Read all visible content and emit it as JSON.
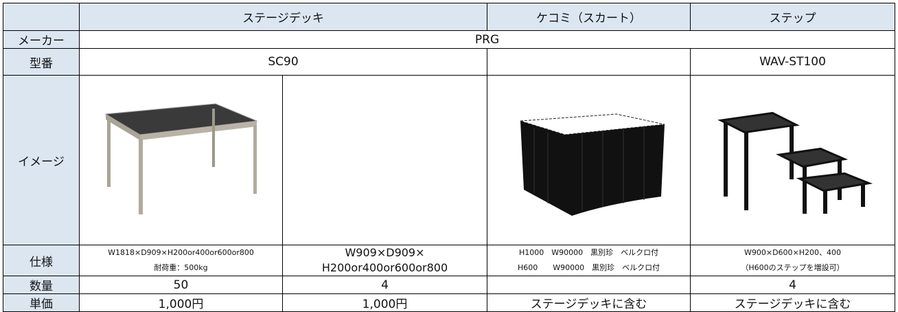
{
  "table": {
    "columns": [
      "ステージデッキ",
      "ケコミ（スカート）",
      "ステップ"
    ],
    "rows": {
      "maker": {
        "label": "メーカー",
        "value": "PRG"
      },
      "model": {
        "label": "型番",
        "deck": "SC90",
        "step": "WAV-ST100"
      },
      "image": {
        "label": "イメージ"
      },
      "spec": {
        "label": "仕様",
        "deck_a": [
          "W1818×D909×H200or400or600or800",
          "耐荷重：500kg"
        ],
        "deck_b": [
          "W909×D909×",
          "H200or400or600or800"
        ],
        "skirt": [
          "H1000　W90000　黒別珍　ベルクロ付",
          "H600　　W90000　黒別珍　ベルクロ付"
        ],
        "step": [
          "W900×D600×H200、400",
          "（H600のステップを増設可）"
        ]
      },
      "quantity": {
        "label": "数量",
        "deck_a": 50,
        "deck_b": 4,
        "step": 4
      },
      "price": {
        "label": "単価",
        "deck_a": "1,000円",
        "deck_b": "1,000円",
        "skirt": "ステージデッキに含む",
        "step": "ステージデッキに含む"
      }
    }
  }
}
